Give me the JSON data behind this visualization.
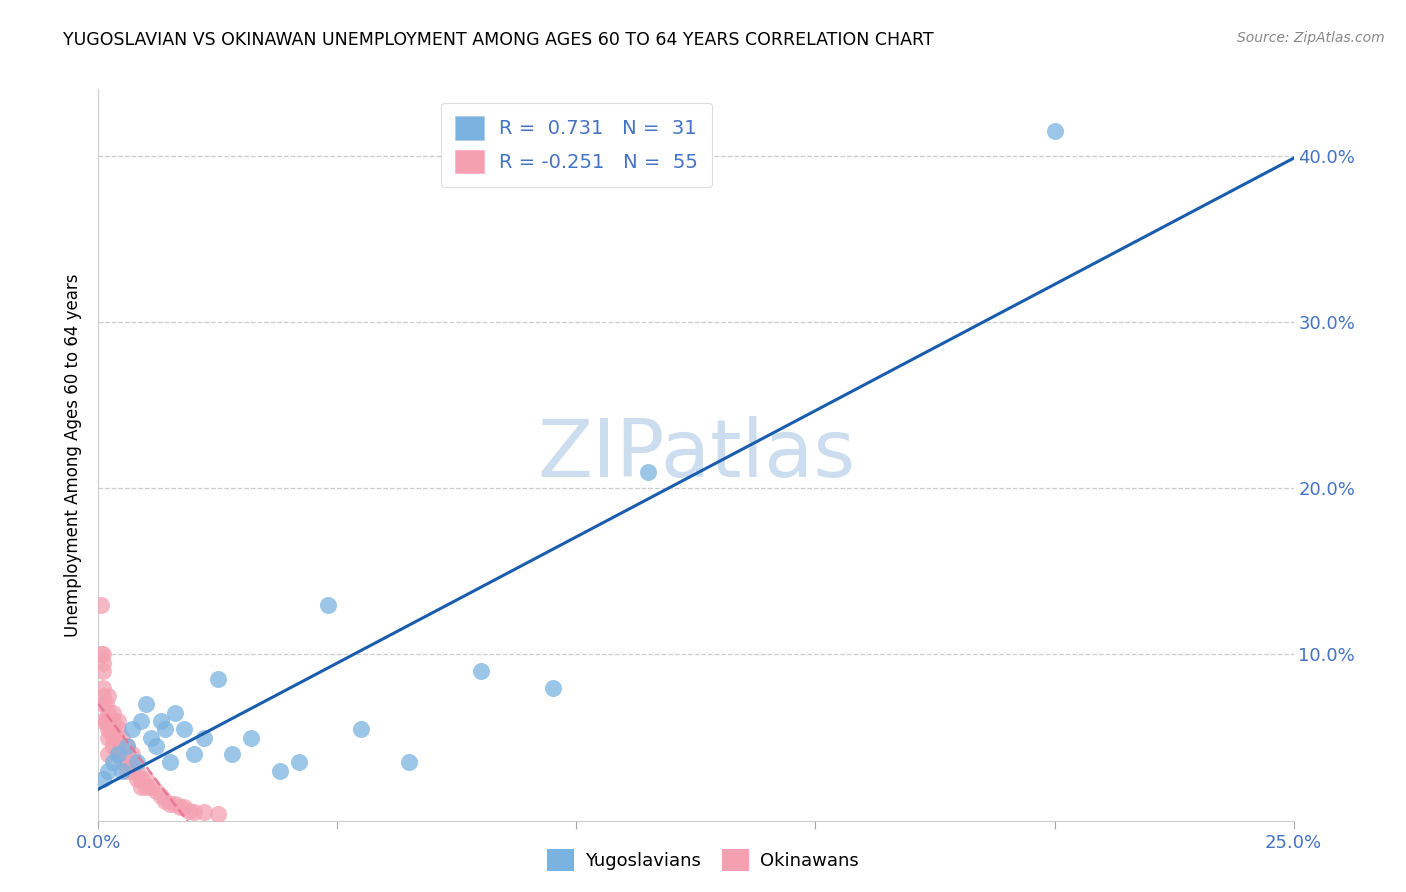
{
  "title": "YUGOSLAVIAN VS OKINAWAN UNEMPLOYMENT AMONG AGES 60 TO 64 YEARS CORRELATION CHART",
  "source": "Source: ZipAtlas.com",
  "ylabel": "Unemployment Among Ages 60 to 64 years",
  "xlim": [
    0.0,
    0.25
  ],
  "ylim": [
    0.0,
    0.44
  ],
  "xticks": [
    0.0,
    0.05,
    0.1,
    0.15,
    0.2,
    0.25
  ],
  "yticks": [
    0.1,
    0.2,
    0.3,
    0.4
  ],
  "ytick_labels": [
    "10.0%",
    "20.0%",
    "30.0%",
    "40.0%"
  ],
  "yugoslavian_R": 0.731,
  "yugoslavian_N": 31,
  "okinawan_R": -0.251,
  "okinawan_N": 55,
  "blue_scatter": "#7AB3E0",
  "pink_scatter": "#F4A0B0",
  "line_blue": "#1A5DAD",
  "line_pink": "#E87090",
  "watermark": "ZIPatlas",
  "watermark_color": "#CCDDF0",
  "legend_label_blue": "Yugoslavians",
  "legend_label_pink": "Okinawans",
  "axis_label_color": "#4472C4",
  "yugoslavian_x": [
    0.001,
    0.002,
    0.003,
    0.004,
    0.005,
    0.006,
    0.007,
    0.008,
    0.009,
    0.01,
    0.011,
    0.012,
    0.013,
    0.014,
    0.015,
    0.016,
    0.018,
    0.02,
    0.022,
    0.025,
    0.028,
    0.032,
    0.038,
    0.042,
    0.048,
    0.055,
    0.065,
    0.08,
    0.095,
    0.115,
    0.2
  ],
  "yugoslavian_y": [
    0.025,
    0.03,
    0.035,
    0.04,
    0.03,
    0.045,
    0.055,
    0.035,
    0.06,
    0.07,
    0.05,
    0.045,
    0.06,
    0.055,
    0.035,
    0.065,
    0.055,
    0.04,
    0.05,
    0.085,
    0.04,
    0.05,
    0.03,
    0.035,
    0.13,
    0.055,
    0.035,
    0.09,
    0.08,
    0.21,
    0.415
  ],
  "okinawan_x": [
    0.0005,
    0.0005,
    0.001,
    0.001,
    0.001,
    0.001,
    0.001,
    0.001,
    0.001,
    0.0015,
    0.0015,
    0.002,
    0.002,
    0.002,
    0.002,
    0.002,
    0.002,
    0.0025,
    0.003,
    0.003,
    0.003,
    0.003,
    0.003,
    0.0035,
    0.004,
    0.004,
    0.004,
    0.004,
    0.005,
    0.005,
    0.005,
    0.006,
    0.006,
    0.006,
    0.007,
    0.007,
    0.007,
    0.008,
    0.008,
    0.009,
    0.009,
    0.01,
    0.01,
    0.011,
    0.012,
    0.013,
    0.014,
    0.015,
    0.016,
    0.017,
    0.018,
    0.019,
    0.02,
    0.022,
    0.025
  ],
  "okinawan_y": [
    0.1,
    0.13,
    0.06,
    0.07,
    0.075,
    0.08,
    0.09,
    0.095,
    0.1,
    0.06,
    0.07,
    0.04,
    0.05,
    0.055,
    0.06,
    0.065,
    0.075,
    0.055,
    0.045,
    0.05,
    0.055,
    0.06,
    0.065,
    0.05,
    0.04,
    0.045,
    0.055,
    0.06,
    0.035,
    0.04,
    0.05,
    0.03,
    0.035,
    0.045,
    0.03,
    0.035,
    0.04,
    0.025,
    0.03,
    0.02,
    0.025,
    0.02,
    0.025,
    0.02,
    0.018,
    0.015,
    0.012,
    0.01,
    0.01,
    0.008,
    0.008,
    0.006,
    0.005,
    0.005,
    0.004
  ]
}
